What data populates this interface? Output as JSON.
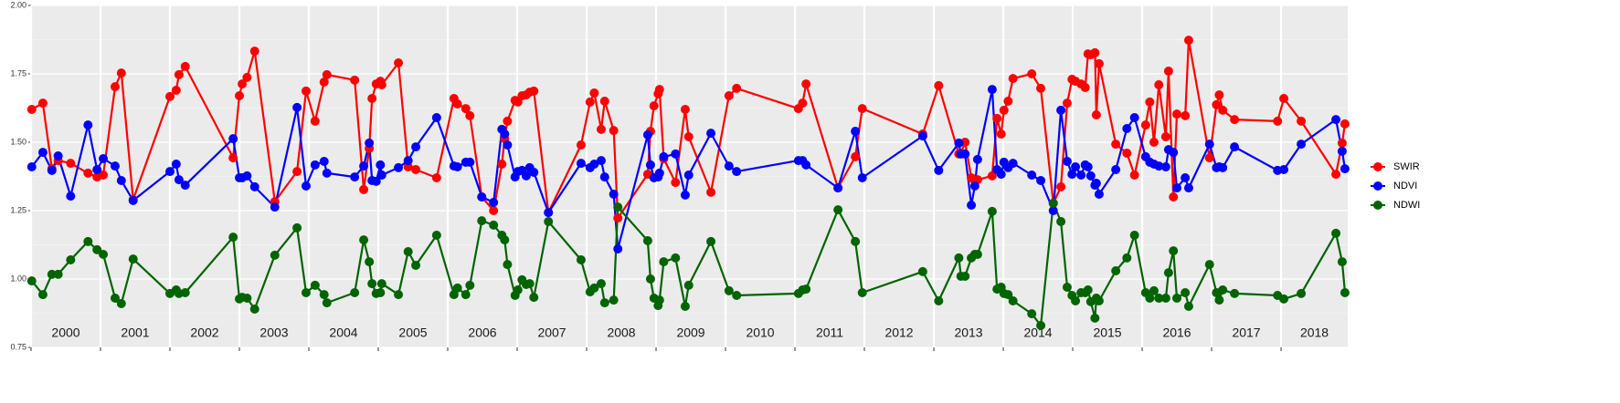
{
  "chart_data": {
    "type": "line",
    "x": [
      2000.01,
      2000.17,
      2000.3,
      2000.39,
      2000.57,
      2000.82,
      2000.95,
      2001.04,
      2001.21,
      2001.3,
      2001.47,
      2002.0,
      2002.09,
      2002.13,
      2002.22,
      2002.91,
      2003.0,
      2003.04,
      2003.11,
      2003.22,
      2003.51,
      2003.83,
      2003.96,
      2004.09,
      2004.22,
      2004.26,
      2004.66,
      2004.79,
      2004.87,
      2004.91,
      2004.97,
      2005.03,
      2005.05,
      2005.29,
      2005.43,
      2005.54,
      2005.84,
      2006.09,
      2006.14,
      2006.26,
      2006.32,
      2006.49,
      2006.66,
      2006.78,
      2006.82,
      2006.86,
      2006.97,
      2007.01,
      2007.07,
      2007.13,
      2007.18,
      2007.24,
      2007.45,
      2007.92,
      2008.05,
      2008.11,
      2008.21,
      2008.26,
      2008.39,
      2008.45,
      2008.88,
      2008.92,
      2008.97,
      2009.03,
      2009.05,
      2009.11,
      2009.28,
      2009.42,
      2009.47,
      2009.79,
      2010.05,
      2010.16,
      2011.05,
      2011.11,
      2011.16,
      2011.62,
      2011.87,
      2011.97,
      2012.84,
      2013.07,
      2013.36,
      2013.39,
      2013.45,
      2013.54,
      2013.59,
      2013.63,
      2013.84,
      2013.91,
      2013.97,
      2014.01,
      2014.07,
      2014.14,
      2014.41,
      2014.54,
      2014.72,
      2014.83,
      2014.92,
      2014.99,
      2015.04,
      2015.12,
      2015.18,
      2015.22,
      2015.26,
      2015.32,
      2015.34,
      2015.38,
      2015.62,
      2015.78,
      2015.89,
      2016.05,
      2016.11,
      2016.17,
      2016.24,
      2016.34,
      2016.38,
      2016.45,
      2016.5,
      2016.62,
      2016.67,
      2016.97,
      2017.07,
      2017.11,
      2017.16,
      2017.33,
      2017.95,
      2018.04,
      2018.29,
      2018.79,
      2018.88,
      2018.92
    ],
    "series": [
      {
        "name": "SWIR",
        "color": "#ff0000",
        "values": [
          1.62,
          1.643,
          1.403,
          1.433,
          1.423,
          1.387,
          1.373,
          1.38,
          1.703,
          1.753,
          1.29,
          1.667,
          1.69,
          1.747,
          1.777,
          1.443,
          1.67,
          1.713,
          1.737,
          1.833,
          1.283,
          1.393,
          1.687,
          1.577,
          1.72,
          1.747,
          1.727,
          1.327,
          1.477,
          1.66,
          1.713,
          1.723,
          1.71,
          1.79,
          1.41,
          1.4,
          1.37,
          1.66,
          1.64,
          1.623,
          1.597,
          1.3,
          1.25,
          1.42,
          1.513,
          1.577,
          1.653,
          1.647,
          1.67,
          1.673,
          1.683,
          1.687,
          1.243,
          1.49,
          1.647,
          1.68,
          1.547,
          1.65,
          1.543,
          1.223,
          1.383,
          1.54,
          1.633,
          1.677,
          1.693,
          1.44,
          1.353,
          1.62,
          1.52,
          1.317,
          1.67,
          1.697,
          1.623,
          1.643,
          1.713,
          1.333,
          1.447,
          1.623,
          1.53,
          1.707,
          1.457,
          1.46,
          1.5,
          1.37,
          1.36,
          1.363,
          1.377,
          1.587,
          1.53,
          1.617,
          1.65,
          1.733,
          1.75,
          1.697,
          1.277,
          1.337,
          1.643,
          1.73,
          1.723,
          1.713,
          1.7,
          1.823,
          1.82,
          1.827,
          1.6,
          1.787,
          1.493,
          1.46,
          1.38,
          1.563,
          1.647,
          1.5,
          1.71,
          1.52,
          1.76,
          1.3,
          1.603,
          1.597,
          1.873,
          1.443,
          1.637,
          1.673,
          1.617,
          1.583,
          1.577,
          1.66,
          1.577,
          1.383,
          1.497,
          1.567
        ]
      },
      {
        "name": "NDVI",
        "color": "#0000ff",
        "values": [
          1.41,
          1.463,
          1.397,
          1.45,
          1.303,
          1.563,
          1.4,
          1.44,
          1.413,
          1.36,
          1.287,
          1.393,
          1.42,
          1.363,
          1.343,
          1.513,
          1.37,
          1.37,
          1.377,
          1.337,
          1.263,
          1.627,
          1.34,
          1.417,
          1.43,
          1.387,
          1.373,
          1.413,
          1.497,
          1.36,
          1.357,
          1.417,
          1.38,
          1.407,
          1.433,
          1.483,
          1.59,
          1.413,
          1.41,
          1.427,
          1.427,
          1.3,
          1.28,
          1.547,
          1.53,
          1.49,
          1.373,
          1.393,
          1.397,
          1.377,
          1.407,
          1.39,
          1.243,
          1.423,
          1.407,
          1.42,
          1.433,
          1.373,
          1.31,
          1.11,
          1.527,
          1.417,
          1.37,
          1.373,
          1.387,
          1.447,
          1.457,
          1.307,
          1.38,
          1.533,
          1.413,
          1.393,
          1.433,
          1.433,
          1.417,
          1.333,
          1.54,
          1.37,
          1.523,
          1.397,
          1.497,
          1.457,
          1.457,
          1.27,
          1.34,
          1.437,
          1.693,
          1.4,
          1.383,
          1.427,
          1.407,
          1.423,
          1.38,
          1.36,
          1.25,
          1.617,
          1.43,
          1.383,
          1.41,
          1.38,
          1.417,
          1.41,
          1.377,
          1.343,
          1.35,
          1.31,
          1.4,
          1.55,
          1.59,
          1.447,
          1.427,
          1.42,
          1.413,
          1.41,
          1.473,
          1.463,
          1.333,
          1.37,
          1.333,
          1.493,
          1.407,
          1.41,
          1.407,
          1.483,
          1.397,
          1.4,
          1.493,
          1.583,
          1.467,
          1.403
        ]
      },
      {
        "name": "NDWI",
        "color": "#006400",
        "values": [
          0.993,
          0.943,
          1.017,
          1.017,
          1.07,
          1.137,
          1.107,
          1.09,
          0.93,
          0.91,
          1.073,
          0.947,
          0.96,
          0.947,
          0.95,
          1.153,
          0.927,
          0.933,
          0.93,
          0.89,
          1.087,
          1.187,
          0.95,
          0.977,
          0.943,
          0.913,
          0.95,
          1.143,
          1.063,
          0.983,
          0.947,
          0.95,
          0.983,
          0.943,
          1.1,
          1.05,
          1.16,
          0.943,
          0.967,
          0.943,
          0.977,
          1.213,
          1.197,
          1.16,
          1.143,
          1.053,
          0.94,
          0.96,
          0.997,
          0.98,
          0.983,
          0.933,
          1.21,
          1.07,
          0.953,
          0.967,
          0.983,
          0.913,
          0.923,
          1.263,
          1.14,
          1.0,
          0.93,
          0.903,
          0.923,
          1.063,
          1.077,
          0.9,
          0.977,
          1.137,
          0.957,
          0.94,
          0.947,
          0.96,
          0.963,
          1.253,
          1.137,
          0.95,
          1.027,
          0.92,
          1.077,
          1.01,
          1.01,
          1.077,
          1.09,
          1.09,
          1.247,
          0.963,
          0.97,
          0.947,
          0.943,
          0.92,
          0.873,
          0.83,
          1.277,
          1.21,
          0.97,
          0.94,
          0.92,
          0.95,
          0.95,
          0.96,
          0.917,
          0.857,
          0.93,
          0.92,
          1.03,
          1.077,
          1.16,
          0.95,
          0.93,
          0.957,
          0.93,
          0.93,
          1.023,
          1.103,
          0.93,
          0.95,
          0.9,
          1.053,
          0.95,
          0.923,
          0.96,
          0.947,
          0.94,
          0.927,
          0.947,
          1.167,
          1.063,
          0.95
        ]
      }
    ],
    "xlim": [
      2000,
      2018.96
    ],
    "xticks": [
      2000,
      2001,
      2002,
      2003,
      2004,
      2005,
      2006,
      2007,
      2008,
      2009,
      2010,
      2011,
      2012,
      2013,
      2014,
      2015,
      2016,
      2017,
      2018
    ],
    "year_labels": [
      "2000",
      "2001",
      "2002",
      "2003",
      "2004",
      "2005",
      "2006",
      "2007",
      "2008",
      "2009",
      "2010",
      "2011",
      "2012",
      "2013",
      "2014",
      "2015",
      "2016",
      "2017",
      "2018"
    ],
    "ylim": [
      0.75,
      2.0
    ],
    "yticks": [
      0.75,
      {
        "value": 1.0,
        "label": "1.00"
      },
      1.25,
      {
        "value": 1.5,
        "label": "1.50"
      },
      1.75,
      {
        "value": 2.0,
        "label": "2.00"
      }
    ],
    "grid": true,
    "legend": "right"
  }
}
